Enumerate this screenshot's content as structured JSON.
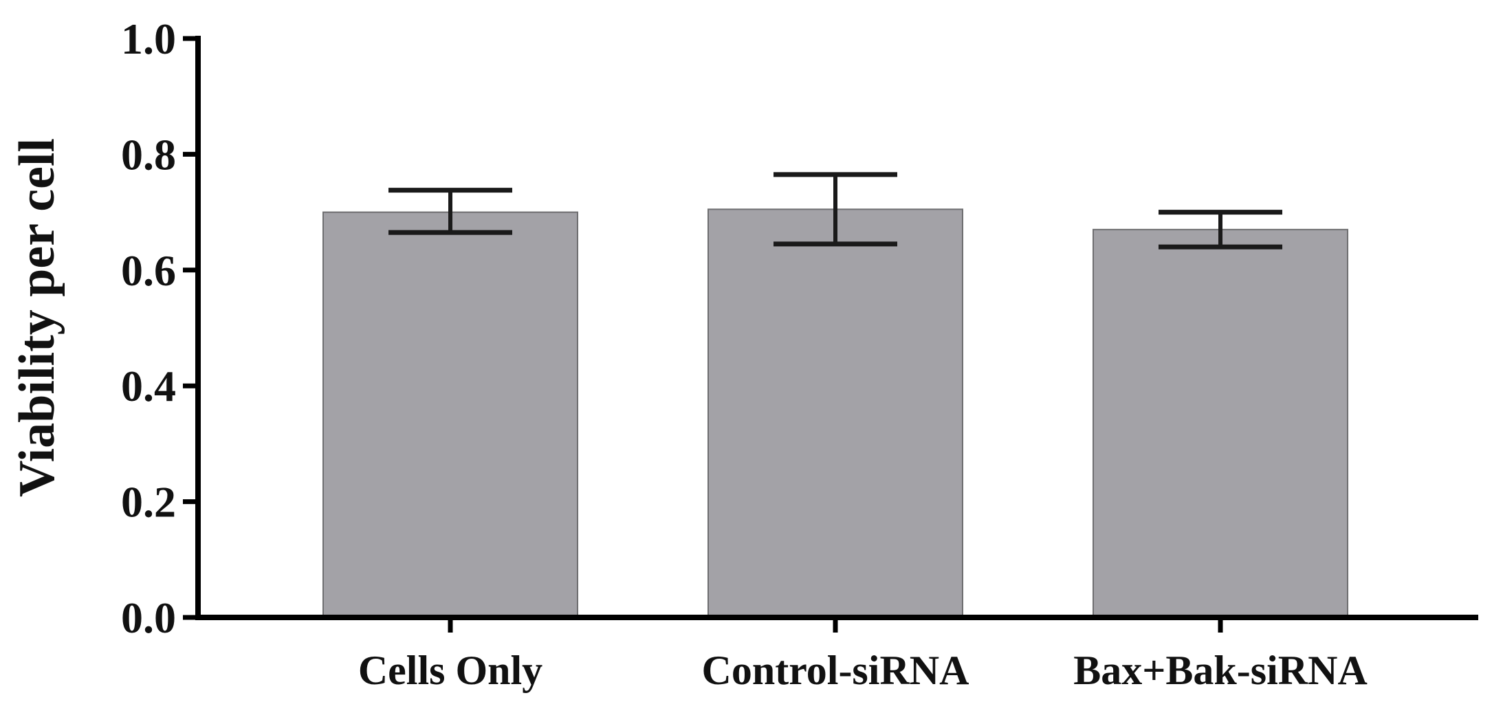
{
  "chart_data": {
    "type": "bar",
    "categories": [
      "Cells Only",
      "Control-siRNA",
      "Bax+Bak-siRNA"
    ],
    "values": [
      0.7,
      0.705,
      0.67
    ],
    "error_low": [
      0.665,
      0.645,
      0.64
    ],
    "error_high": [
      0.738,
      0.765,
      0.7
    ],
    "title": "",
    "xlabel": "",
    "ylabel": "Viability per cell",
    "ylim": [
      0,
      1.0
    ],
    "yticks": [
      "0.0",
      "0.2",
      "0.4",
      "0.6",
      "0.8",
      "1.0"
    ],
    "grid": false,
    "bar_color": "#a3a2a7",
    "bar_edge_color": "#6e6e70",
    "axis_color": "#000000"
  }
}
